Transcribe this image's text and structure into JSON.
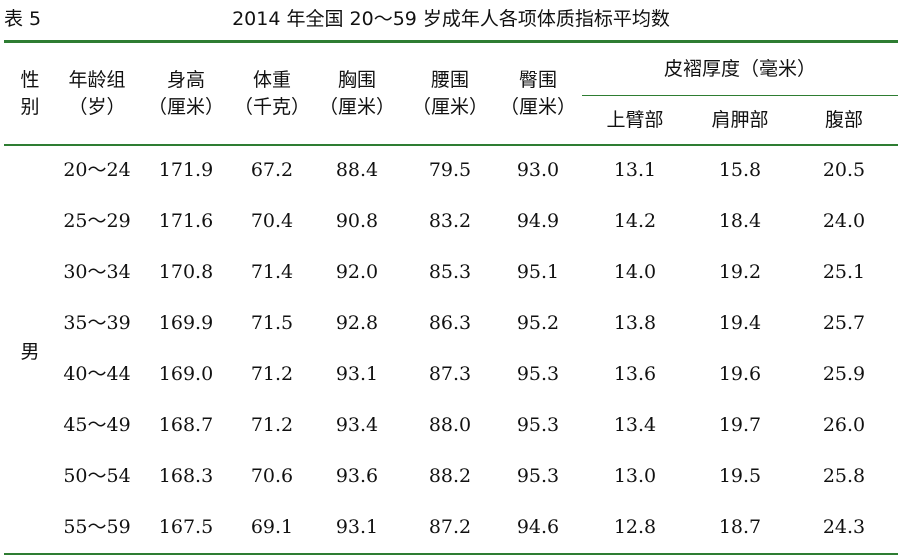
{
  "caption": {
    "label": "表 5",
    "title": "2014 年全国 20～59 岁成年人各项体质指标平均数"
  },
  "headers": [
    [
      "性",
      "别"
    ],
    [
      "年龄组",
      "（岁）"
    ],
    [
      "身高",
      "（厘米）"
    ],
    [
      "体重",
      "（千克）"
    ],
    [
      "胸围",
      "（厘米）"
    ],
    [
      "腰围",
      "（厘米）"
    ],
    [
      "臀围",
      "（厘米）"
    ]
  ],
  "skinfold": {
    "group": "皮褶厚度（毫米）",
    "subs": [
      "上臂部",
      "肩胛部",
      "腹部"
    ]
  },
  "sex_value": "男",
  "rows": [
    [
      "20～24",
      "171.9",
      "67.2",
      "88.4",
      "79.5",
      "93.0",
      "13.1",
      "15.8",
      "20.5"
    ],
    [
      "25～29",
      "171.6",
      "70.4",
      "90.8",
      "83.2",
      "94.9",
      "14.2",
      "18.4",
      "24.0"
    ],
    [
      "30～34",
      "170.8",
      "71.4",
      "92.0",
      "85.3",
      "95.1",
      "14.0",
      "19.2",
      "25.1"
    ],
    [
      "35～39",
      "169.9",
      "71.5",
      "92.8",
      "86.3",
      "95.2",
      "13.8",
      "19.4",
      "25.7"
    ],
    [
      "40～44",
      "169.0",
      "71.2",
      "93.1",
      "87.3",
      "95.3",
      "13.6",
      "19.6",
      "25.9"
    ],
    [
      "45～49",
      "168.7",
      "71.2",
      "93.4",
      "88.0",
      "95.3",
      "13.4",
      "19.7",
      "26.0"
    ],
    [
      "50～54",
      "168.3",
      "70.6",
      "93.6",
      "88.2",
      "95.3",
      "13.0",
      "19.5",
      "25.8"
    ],
    [
      "55～59",
      "167.5",
      "69.1",
      "93.1",
      "87.2",
      "94.6",
      "12.8",
      "18.7",
      "24.3"
    ]
  ]
}
